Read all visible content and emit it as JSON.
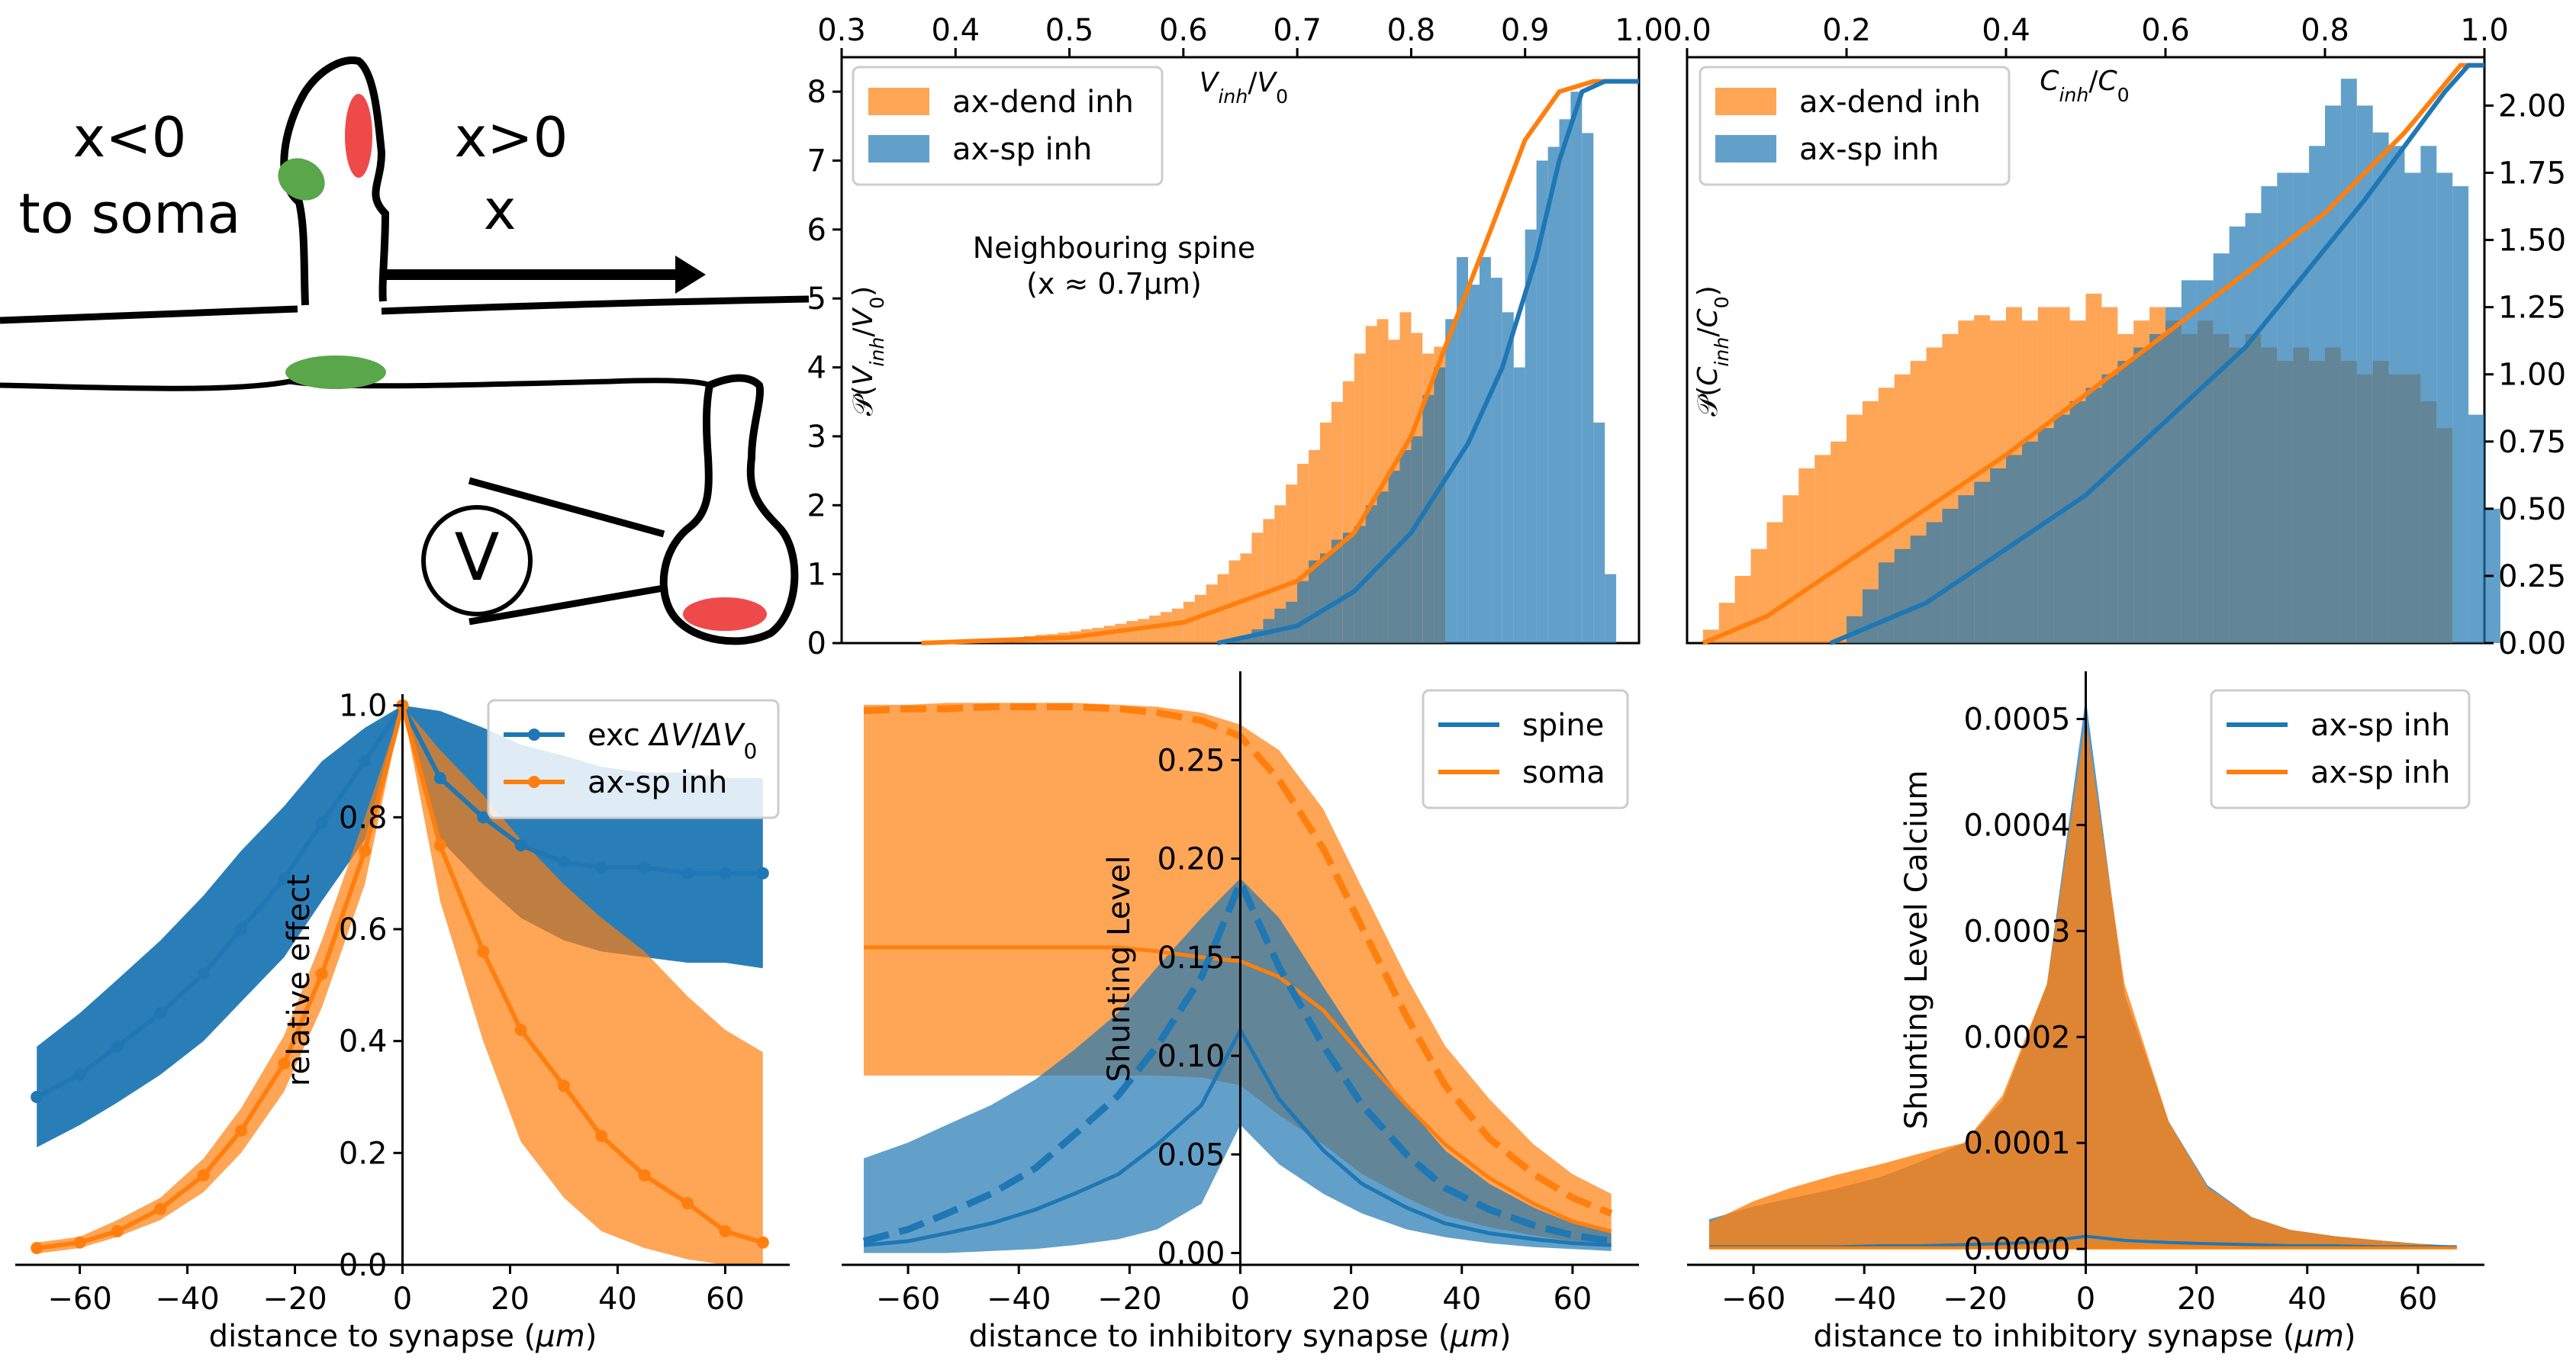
{
  "colors": {
    "blue": "#1f77b4",
    "orange": "#ff7f0e",
    "blue_light": "#5a9fd0",
    "orange_light": "#ffa04a",
    "axis": "#000000"
  },
  "sketch": {
    "left_label_1": "x<0",
    "left_label_2": "to soma",
    "right_label_1": "x>0",
    "right_label_2": "x",
    "electrode": "V"
  },
  "chart_data": [
    {
      "id": "hist_v",
      "type": "bar",
      "top_xlabel": "V_inh/V_0",
      "ylabel": "P(V_inh/V_0)",
      "xlim": [
        0.3,
        1.0
      ],
      "ylim": [
        0,
        8.5
      ],
      "xticks": [
        "0.3",
        "0.4",
        "0.5",
        "0.6",
        "0.7",
        "0.8",
        "0.9",
        "1.0"
      ],
      "yticks": [
        "0",
        "1",
        "2",
        "3",
        "4",
        "5",
        "6",
        "7",
        "8"
      ],
      "annotation_1": "Neighbouring spine",
      "annotation_2": "(x ≈ 0.7μm)",
      "legend": [
        "ax-dend inh",
        "ax-sp inh"
      ],
      "bin_width": 0.01,
      "orange_bins": {
        "x_start": 0.37,
        "values": [
          0.02,
          0.02,
          0.03,
          0.03,
          0.04,
          0.05,
          0.06,
          0.07,
          0.08,
          0.1,
          0.12,
          0.13,
          0.15,
          0.17,
          0.2,
          0.22,
          0.25,
          0.28,
          0.32,
          0.35,
          0.4,
          0.45,
          0.5,
          0.6,
          0.7,
          0.85,
          1.0,
          1.2,
          1.3,
          1.6,
          1.8,
          2.0,
          2.3,
          2.6,
          2.8,
          3.2,
          3.5,
          3.8,
          4.2,
          4.6,
          4.7,
          4.4,
          4.8,
          4.5,
          4.2,
          4.3
        ]
      },
      "blue_bins": {
        "x_start": 0.63,
        "values": [
          0.02,
          0.05,
          0.1,
          0.2,
          0.35,
          0.5,
          0.6,
          0.9,
          1.2,
          1.3,
          1.5,
          1.6,
          1.7,
          2.0,
          2.2,
          2.5,
          2.8,
          3.0,
          3.6,
          4.0,
          4.7,
          5.6,
          5.2,
          5.6,
          5.3,
          4.8,
          4.0,
          6.0,
          7.0,
          7.2,
          7.6,
          8.0,
          7.4,
          3.2,
          1.0
        ]
      },
      "cdf_orange": [
        [
          0.37,
          0.0
        ],
        [
          0.5,
          0.08
        ],
        [
          0.6,
          0.3
        ],
        [
          0.7,
          0.9
        ],
        [
          0.75,
          1.6
        ],
        [
          0.8,
          3.0
        ],
        [
          0.83,
          4.3
        ],
        [
          0.87,
          6.0
        ],
        [
          0.9,
          7.3
        ],
        [
          0.93,
          8.0
        ],
        [
          0.96,
          8.15
        ],
        [
          1.0,
          8.15
        ]
      ],
      "cdf_blue": [
        [
          0.63,
          0.0
        ],
        [
          0.7,
          0.25
        ],
        [
          0.75,
          0.75
        ],
        [
          0.8,
          1.6
        ],
        [
          0.85,
          2.9
        ],
        [
          0.88,
          4.0
        ],
        [
          0.91,
          5.6
        ],
        [
          0.93,
          7.0
        ],
        [
          0.95,
          8.0
        ],
        [
          0.97,
          8.15
        ],
        [
          1.0,
          8.15
        ]
      ]
    },
    {
      "id": "hist_c",
      "type": "bar",
      "top_xlabel": "C_inh/C_0",
      "ylabel": "P(C_inh/C_0)",
      "xlim": [
        0.0,
        1.0
      ],
      "ylim": [
        0,
        2.18
      ],
      "xticks": [
        "0.0",
        "0.2",
        "0.4",
        "0.6",
        "0.8",
        "1.0"
      ],
      "yticks": [
        "0.00",
        "0.25",
        "0.50",
        "0.75",
        "1.00",
        "1.25",
        "1.50",
        "1.75",
        "2.00"
      ],
      "legend": [
        "ax-dend inh",
        "ax-sp inh"
      ],
      "bin_width": 0.02,
      "orange_bins": {
        "x_start": 0.02,
        "values": [
          0.05,
          0.15,
          0.25,
          0.35,
          0.45,
          0.55,
          0.65,
          0.7,
          0.75,
          0.85,
          0.9,
          0.95,
          1.0,
          1.05,
          1.1,
          1.15,
          1.2,
          1.22,
          1.2,
          1.25,
          1.2,
          1.25,
          1.25,
          1.2,
          1.3,
          1.25,
          1.15,
          1.2,
          1.25,
          1.2,
          1.15,
          1.2,
          1.15,
          1.1,
          1.15,
          1.1,
          1.05,
          1.1,
          1.05,
          1.1,
          1.05,
          1.0,
          1.05,
          1.0,
          1.0,
          0.9,
          0.8
        ]
      },
      "blue_bins": {
        "x_start": 0.2,
        "values": [
          0.1,
          0.2,
          0.3,
          0.35,
          0.4,
          0.45,
          0.5,
          0.55,
          0.6,
          0.65,
          0.7,
          0.75,
          0.8,
          0.85,
          0.9,
          0.95,
          1.0,
          1.05,
          1.1,
          1.15,
          1.25,
          1.35,
          1.35,
          1.45,
          1.55,
          1.6,
          1.7,
          1.75,
          1.75,
          1.85,
          2.0,
          2.1,
          2.0,
          1.9,
          1.85,
          1.75,
          1.85,
          1.75,
          1.7,
          0.85,
          0.5
        ]
      },
      "cdf_orange": [
        [
          0.02,
          0.0
        ],
        [
          0.1,
          0.1
        ],
        [
          0.2,
          0.3
        ],
        [
          0.4,
          0.7
        ],
        [
          0.6,
          1.15
        ],
        [
          0.8,
          1.6
        ],
        [
          0.9,
          1.9
        ],
        [
          0.97,
          2.15
        ],
        [
          1.0,
          2.15
        ]
      ],
      "cdf_blue": [
        [
          0.18,
          0.0
        ],
        [
          0.3,
          0.15
        ],
        [
          0.5,
          0.55
        ],
        [
          0.7,
          1.1
        ],
        [
          0.85,
          1.65
        ],
        [
          0.95,
          2.05
        ],
        [
          0.98,
          2.15
        ],
        [
          1.0,
          2.15
        ]
      ]
    },
    {
      "id": "relative_effect",
      "type": "line",
      "xlabel": "distance to synapse (μm)",
      "ylabel": "relative effect",
      "xlim": [
        -72,
        72
      ],
      "ylim": [
        0,
        1.02
      ],
      "xticks": [
        "-60",
        "-40",
        "-20",
        "0",
        "20",
        "40",
        "60"
      ],
      "yticks": [
        "0.0",
        "0.2",
        "0.4",
        "0.6",
        "0.8",
        "1.0"
      ],
      "series": [
        {
          "name": "exc ΔV/ΔV_0",
          "color": "blue",
          "x": [
            -68,
            -60,
            -53,
            -45,
            -37,
            -30,
            -22,
            -15,
            -7,
            0,
            7,
            15,
            22,
            30,
            37,
            45,
            53,
            60,
            67
          ],
          "y": [
            0.3,
            0.34,
            0.39,
            0.45,
            0.52,
            0.6,
            0.69,
            0.79,
            0.9,
            1.0,
            0.87,
            0.8,
            0.75,
            0.72,
            0.71,
            0.71,
            0.7,
            0.7,
            0.7
          ],
          "band_low": [
            0.21,
            0.25,
            0.29,
            0.34,
            0.4,
            0.47,
            0.55,
            0.65,
            0.76,
            1.0,
            0.76,
            0.68,
            0.62,
            0.58,
            0.56,
            0.55,
            0.54,
            0.54,
            0.53
          ],
          "band_high": [
            0.39,
            0.45,
            0.51,
            0.58,
            0.66,
            0.74,
            0.82,
            0.9,
            0.96,
            1.0,
            0.99,
            0.96,
            0.93,
            0.91,
            0.89,
            0.88,
            0.88,
            0.87,
            0.87
          ]
        },
        {
          "name": "ax-sp inh",
          "color": "orange",
          "x": [
            -68,
            -60,
            -53,
            -45,
            -37,
            -30,
            -22,
            -15,
            -7,
            0,
            7,
            15,
            22,
            30,
            37,
            45,
            53,
            60,
            67
          ],
          "y": [
            0.03,
            0.04,
            0.06,
            0.1,
            0.16,
            0.24,
            0.36,
            0.52,
            0.74,
            1.0,
            0.75,
            0.56,
            0.42,
            0.32,
            0.23,
            0.16,
            0.11,
            0.06,
            0.04
          ],
          "band_low": [
            0.02,
            0.03,
            0.05,
            0.08,
            0.13,
            0.2,
            0.31,
            0.46,
            0.68,
            1.0,
            0.65,
            0.4,
            0.22,
            0.12,
            0.06,
            0.03,
            0.01,
            0.0,
            0.0
          ],
          "band_high": [
            0.04,
            0.05,
            0.08,
            0.12,
            0.19,
            0.28,
            0.41,
            0.58,
            0.8,
            1.0,
            0.92,
            0.84,
            0.76,
            0.68,
            0.62,
            0.56,
            0.48,
            0.42,
            0.38
          ]
        }
      ],
      "legend": [
        "exc ΔV/ΔV_0",
        "ax-sp inh"
      ]
    },
    {
      "id": "shunting_level",
      "type": "line",
      "xlabel": "distance to inhibitory synapse (μm)",
      "ylabel": "Shunting Level",
      "xlim": [
        -72,
        72
      ],
      "ylim": [
        -0.006,
        0.295
      ],
      "xticks": [
        "-60",
        "-40",
        "-20",
        "0",
        "20",
        "40",
        "60"
      ],
      "yticks": [
        "0.00",
        "0.05",
        "0.10",
        "0.15",
        "0.20",
        "0.25"
      ],
      "legend": [
        "spine",
        "soma"
      ],
      "x": [
        -68,
        -60,
        -53,
        -45,
        -37,
        -30,
        -22,
        -15,
        -7,
        0,
        7,
        15,
        22,
        30,
        37,
        45,
        53,
        60,
        67
      ],
      "blue_solid": [
        0.004,
        0.006,
        0.01,
        0.015,
        0.022,
        0.03,
        0.04,
        0.055,
        0.075,
        0.113,
        0.078,
        0.052,
        0.035,
        0.023,
        0.015,
        0.01,
        0.007,
        0.005,
        0.004
      ],
      "blue_dashed": [
        0.006,
        0.012,
        0.02,
        0.03,
        0.043,
        0.06,
        0.08,
        0.105,
        0.14,
        0.188,
        0.145,
        0.105,
        0.075,
        0.05,
        0.033,
        0.022,
        0.014,
        0.009,
        0.006
      ],
      "blue_band_low": [
        0.0,
        0.0,
        0.0,
        0.001,
        0.002,
        0.004,
        0.007,
        0.012,
        0.025,
        0.065,
        0.045,
        0.03,
        0.02,
        0.012,
        0.008,
        0.005,
        0.003,
        0.002,
        0.001
      ],
      "blue_band_high": [
        0.048,
        0.056,
        0.065,
        0.075,
        0.088,
        0.103,
        0.122,
        0.145,
        0.17,
        0.19,
        0.17,
        0.135,
        0.105,
        0.075,
        0.052,
        0.035,
        0.023,
        0.015,
        0.01
      ],
      "orange_solid": [
        0.155,
        0.155,
        0.155,
        0.155,
        0.155,
        0.155,
        0.155,
        0.153,
        0.15,
        0.148,
        0.14,
        0.123,
        0.1,
        0.075,
        0.055,
        0.038,
        0.025,
        0.016,
        0.011
      ],
      "orange_dashed": [
        0.275,
        0.276,
        0.276,
        0.277,
        0.277,
        0.277,
        0.276,
        0.274,
        0.27,
        0.262,
        0.24,
        0.205,
        0.165,
        0.12,
        0.085,
        0.058,
        0.04,
        0.028,
        0.02
      ],
      "orange_band_low": [
        0.09,
        0.09,
        0.09,
        0.09,
        0.09,
        0.09,
        0.09,
        0.09,
        0.089,
        0.085,
        0.07,
        0.055,
        0.04,
        0.028,
        0.019,
        0.013,
        0.009,
        0.006,
        0.005
      ],
      "orange_band_high": [
        0.278,
        0.278,
        0.279,
        0.279,
        0.279,
        0.279,
        0.278,
        0.277,
        0.274,
        0.268,
        0.255,
        0.225,
        0.185,
        0.14,
        0.105,
        0.078,
        0.055,
        0.04,
        0.03
      ]
    },
    {
      "id": "shunting_calcium",
      "type": "area",
      "xlabel": "distance to inhibitory synapse (μm)",
      "ylabel": "Shunting Level Calcium",
      "xlim": [
        -72,
        72
      ],
      "ylim": [
        -1.5e-05,
        0.000545
      ],
      "xticks": [
        "-60",
        "-40",
        "-20",
        "0",
        "20",
        "40",
        "60"
      ],
      "yticks": [
        "0.0000",
        "0.0001",
        "0.0002",
        "0.0003",
        "0.0004",
        "0.0005"
      ],
      "legend": [
        "ax-sp inh",
        "ax-sp inh"
      ],
      "x": [
        -68,
        -60,
        -53,
        -45,
        -37,
        -30,
        -22,
        -15,
        -7,
        0,
        7,
        15,
        22,
        30,
        37,
        45,
        53,
        60,
        67
      ],
      "blue_band_high": [
        2.8e-05,
        4e-05,
        4.8e-05,
        5.7e-05,
        6.8e-05,
        8.2e-05,
        0.0001,
        0.00014,
        0.00025,
        0.00052,
        0.00024,
        0.00012,
        6e-05,
        3e-05,
        1.8e-05,
        1.2e-05,
        8e-06,
        5e-06,
        3e-06
      ],
      "orange_band_high": [
        2.5e-05,
        4.5e-05,
        5.8e-05,
        7e-05,
        8e-05,
        9e-05,
        0.0001,
        0.000145,
        0.00025,
        0.0005,
        0.00025,
        0.00012,
        5.8e-05,
        3e-05,
        1.8e-05,
        1.2e-05,
        8e-06,
        5e-06,
        2e-06
      ],
      "blue_line": [
        2e-06,
        2e-06,
        2e-06,
        2e-06,
        3e-06,
        3e-06,
        4e-06,
        5e-06,
        7e-06,
        1.2e-05,
        8e-06,
        6e-06,
        5e-06,
        4e-06,
        3e-06,
        3e-06,
        2e-06,
        2e-06,
        2e-06
      ],
      "orange_line": [
        1e-06,
        1e-06,
        1e-06,
        1e-06,
        1e-06,
        1e-06,
        1e-06,
        1e-06,
        1e-06,
        1e-06,
        1e-06,
        1e-06,
        1e-06,
        1e-06,
        1e-06,
        1e-06,
        1e-06,
        1e-06,
        1e-06
      ]
    }
  ]
}
